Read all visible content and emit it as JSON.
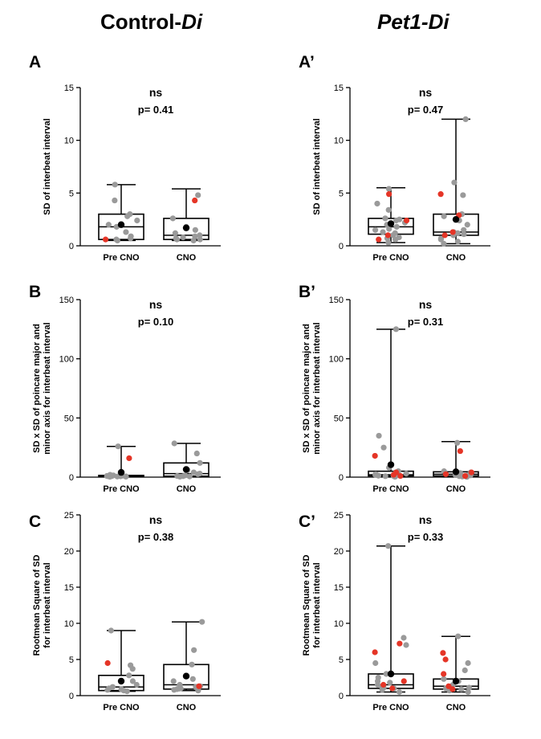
{
  "columns": [
    {
      "title_main": "Control-",
      "title_italic": "Di"
    },
    {
      "title_main": "",
      "title_italic": "Pet1-Di"
    }
  ],
  "colors": {
    "gray": "#9a9a9a",
    "red": "#e53527",
    "mean": "#000000"
  },
  "chart_data": [
    {
      "type": "box",
      "letter": "A",
      "ylabel": [
        "SD of interbeat interval"
      ],
      "ylim": [
        0,
        15
      ],
      "yticks": [
        0,
        5,
        10,
        15
      ],
      "categories": [
        "Pre CNO",
        "CNO"
      ],
      "annotation": {
        "sig": "ns",
        "p": "p= 0.41"
      },
      "boxes": [
        {
          "min": 0.5,
          "q1": 0.6,
          "median": 1.8,
          "q3": 3.0,
          "max": 5.8,
          "mean": 2.0,
          "gray": [
            0.5,
            0.6,
            0.7,
            0.9,
            1.3,
            1.8,
            2.0,
            2.4,
            2.8,
            3.0,
            4.3,
            5.8
          ],
          "red": [
            0.6
          ]
        },
        {
          "min": 0.5,
          "q1": 0.6,
          "median": 1.0,
          "q3": 2.6,
          "max": 5.4,
          "mean": 1.7,
          "gray": [
            0.5,
            0.6,
            0.6,
            0.7,
            0.8,
            0.9,
            1.0,
            1.2,
            1.5,
            1.8,
            2.6,
            4.8
          ],
          "red": [
            4.3
          ]
        }
      ]
    },
    {
      "type": "box",
      "letter": "A’",
      "ylabel": [
        "SD of interbeat interval"
      ],
      "ylim": [
        0,
        15
      ],
      "yticks": [
        0,
        5,
        10,
        15
      ],
      "categories": [
        "Pre CNO",
        "CNO"
      ],
      "annotation": {
        "sig": "ns",
        "p": "p= 0.47"
      },
      "boxes": [
        {
          "min": 0.3,
          "q1": 1.1,
          "median": 1.8,
          "q3": 2.6,
          "max": 5.5,
          "mean": 2.1,
          "gray": [
            0.3,
            0.6,
            0.7,
            1.0,
            1.2,
            1.3,
            1.5,
            1.8,
            2.0,
            2.2,
            2.5,
            2.6,
            3.4,
            4.0,
            5.4,
            1.6,
            2.4,
            0.8
          ],
          "red": [
            0.6,
            1.0,
            2.4,
            4.9
          ]
        },
        {
          "min": 0.2,
          "q1": 1.0,
          "median": 1.3,
          "q3": 3.0,
          "max": 12.0,
          "mean": 2.5,
          "gray": [
            0.2,
            0.4,
            0.7,
            1.0,
            1.1,
            1.2,
            1.3,
            1.5,
            2.0,
            2.4,
            2.8,
            3.0,
            4.8,
            6.0,
            12.0,
            0.6
          ],
          "red": [
            1.0,
            1.3,
            2.9,
            4.9
          ]
        }
      ]
    },
    {
      "type": "box",
      "letter": "B",
      "ylabel": [
        "SD x SD of poincare major and",
        "minor axis for interbeat interval"
      ],
      "ylim": [
        0,
        150
      ],
      "yticks": [
        0,
        50,
        100,
        150
      ],
      "categories": [
        "Pre CNO",
        "CNO"
      ],
      "annotation": {
        "sig": "ns",
        "p": "p= 0.10"
      },
      "boxes": [
        {
          "min": 0.3,
          "q1": 0.5,
          "median": 0.8,
          "q3": 1.5,
          "max": 26.0,
          "mean": 4.0,
          "gray": [
            0.3,
            0.4,
            0.5,
            0.6,
            0.7,
            0.8,
            0.9,
            1.0,
            1.2,
            1.5,
            2.0,
            26.0
          ],
          "red": [
            16.0
          ]
        },
        {
          "min": 0.4,
          "q1": 0.8,
          "median": 3.0,
          "q3": 12.0,
          "max": 28.5,
          "mean": 6.5,
          "gray": [
            0.4,
            0.6,
            0.8,
            1.0,
            1.5,
            2.5,
            3.0,
            4.0,
            6.0,
            12.0,
            20.0,
            28.5
          ],
          "red": []
        }
      ]
    },
    {
      "type": "box",
      "letter": "B’",
      "ylabel": [
        "SD x SD of poincare major and",
        "minor axis for interbeat interval"
      ],
      "ylim": [
        0,
        150
      ],
      "yticks": [
        0,
        50,
        100,
        150
      ],
      "categories": [
        "Pre CNO",
        "CNO"
      ],
      "annotation": {
        "sig": "ns",
        "p": "p= 0.31"
      },
      "boxes": [
        {
          "min": 0.3,
          "q1": 1.0,
          "median": 2.0,
          "q3": 5.0,
          "max": 125.0,
          "mean": 10.5,
          "gray": [
            0.3,
            0.5,
            0.8,
            1.0,
            1.5,
            2.0,
            3.0,
            4.0,
            5.0,
            8.0,
            25.0,
            35.0,
            125.0,
            1.2,
            2.5
          ],
          "red": [
            1.0,
            2.0,
            4.0,
            18.0
          ]
        },
        {
          "min": 0.2,
          "q1": 1.0,
          "median": 2.5,
          "q3": 4.5,
          "max": 30.0,
          "mean": 4.5,
          "gray": [
            0.2,
            0.5,
            1.0,
            1.5,
            2.0,
            3.0,
            4.0,
            5.0,
            29.0,
            0.8,
            1.8,
            3.5
          ],
          "red": [
            1.0,
            2.5,
            4.0,
            22.0
          ]
        }
      ]
    },
    {
      "type": "box",
      "letter": "C",
      "ylabel": [
        "Rootmean Square of SD",
        "for interbeat interval"
      ],
      "ylim": [
        0,
        25
      ],
      "yticks": [
        0,
        5,
        10,
        15,
        20,
        25
      ],
      "categories": [
        "Pre CNO",
        "CNO"
      ],
      "annotation": {
        "sig": "ns",
        "p": "p= 0.38"
      },
      "boxes": [
        {
          "min": 0.6,
          "q1": 0.7,
          "median": 1.2,
          "q3": 2.8,
          "max": 9.0,
          "mean": 2.0,
          "gray": [
            0.6,
            0.7,
            0.8,
            0.9,
            1.0,
            1.2,
            1.5,
            2.0,
            2.8,
            3.7,
            4.2,
            9.0
          ],
          "red": [
            4.5
          ]
        },
        {
          "min": 0.7,
          "q1": 0.9,
          "median": 1.5,
          "q3": 4.3,
          "max": 10.2,
          "mean": 2.7,
          "gray": [
            0.7,
            0.9,
            1.0,
            1.2,
            1.5,
            2.0,
            2.3,
            4.3,
            6.3,
            10.2,
            1.3,
            0.8
          ],
          "red": [
            1.3
          ]
        }
      ]
    },
    {
      "type": "box",
      "letter": "C’",
      "ylabel": [
        "Rootmean Square of SD",
        "for interbeat interval"
      ],
      "ylim": [
        0,
        25
      ],
      "yticks": [
        0,
        5,
        10,
        15,
        20,
        25
      ],
      "categories": [
        "Pre CNO",
        "CNO"
      ],
      "annotation": {
        "sig": "ns",
        "p": "p= 0.33"
      },
      "boxes": [
        {
          "min": 0.5,
          "q1": 1.0,
          "median": 1.5,
          "q3": 3.0,
          "max": 20.7,
          "mean": 3.0,
          "gray": [
            0.5,
            0.8,
            1.0,
            1.2,
            1.5,
            2.0,
            2.5,
            3.0,
            4.5,
            7.0,
            8.0,
            20.7,
            1.1,
            1.8
          ],
          "red": [
            1.0,
            1.5,
            2.0,
            6.0,
            7.2
          ]
        },
        {
          "min": 0.5,
          "q1": 0.9,
          "median": 1.3,
          "q3": 2.3,
          "max": 8.2,
          "mean": 2.0,
          "gray": [
            0.5,
            0.7,
            0.9,
            1.0,
            1.3,
            1.5,
            2.0,
            2.3,
            3.5,
            4.5,
            8.2,
            1.1
          ],
          "red": [
            0.9,
            1.3,
            3.0,
            5.0,
            5.9
          ]
        }
      ]
    }
  ]
}
